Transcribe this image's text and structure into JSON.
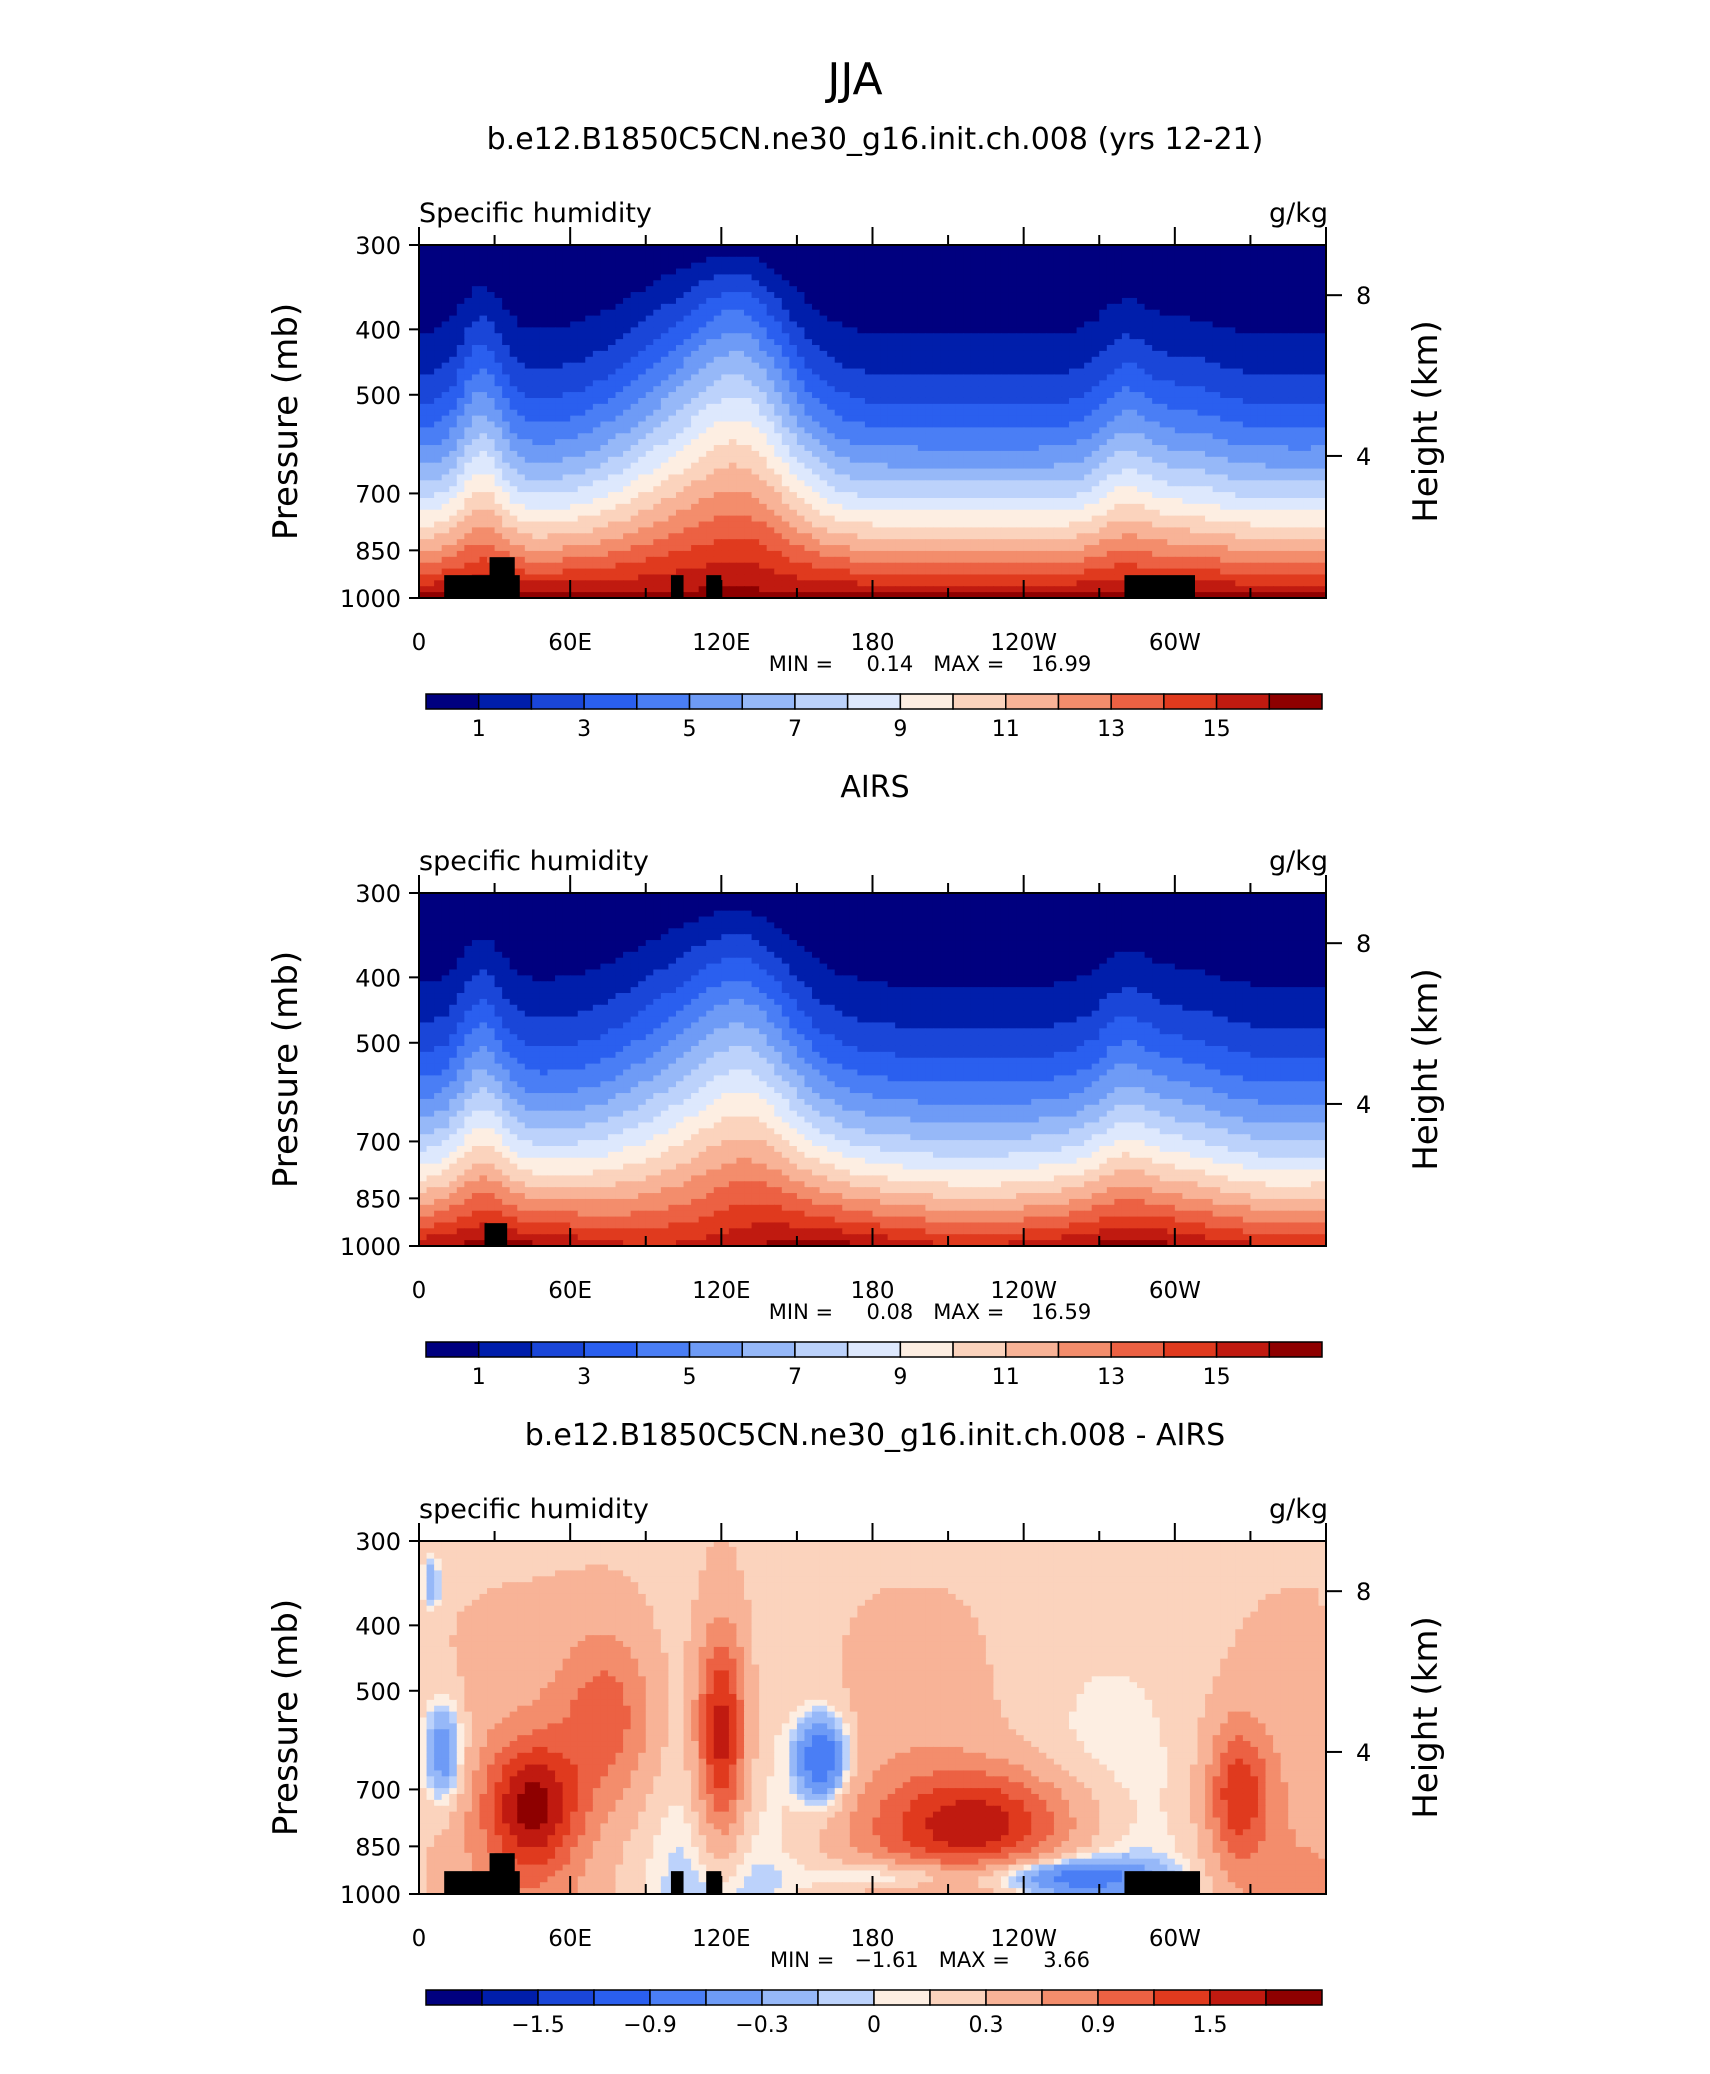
{
  "figure_title": "JJA",
  "chart_data": [
    {
      "type": "heatmap",
      "title": "b.e12.B1850C5CN.ne30_g16.init.ch.008 (yrs 12-21)",
      "left_label": "Specific humidity",
      "right_label": "g/kg",
      "ylabel": "Pressure (mb)",
      "y2label": "Height (km)",
      "x_ticks": [
        "0",
        "60E",
        "120E",
        "180",
        "120W",
        "60W"
      ],
      "y_ticks": [
        "300",
        "400",
        "500",
        "700",
        "850",
        "1000"
      ],
      "y2_ticks": [
        "8",
        "4"
      ],
      "ylim": [
        1000,
        300
      ],
      "y_scale": "log-pressure",
      "stats": "MIN =     0.14   MAX =    16.99",
      "min": 0.14,
      "max": 16.99,
      "colorbar": {
        "labels": [
          "1",
          "3",
          "5",
          "7",
          "9",
          "11",
          "13",
          "15"
        ],
        "levels": [
          1,
          2,
          3,
          4,
          5,
          6,
          7,
          8,
          9,
          10,
          11,
          12,
          13,
          14,
          15,
          16
        ]
      },
      "land_blocks": [
        {
          "lon": [
            10,
            40
          ],
          "p_top": 925
        },
        {
          "lon": [
            28,
            38
          ],
          "p_top": 870
        },
        {
          "lon": [
            100,
            105
          ],
          "p_top": 925
        },
        {
          "lon": [
            114,
            120
          ],
          "p_top": 925
        },
        {
          "lon": [
            280,
            308
          ],
          "p_top": 925
        }
      ]
    },
    {
      "type": "heatmap",
      "title": "AIRS",
      "left_label": "specific humidity",
      "right_label": "g/kg",
      "ylabel": "Pressure (mb)",
      "y2label": "Height (km)",
      "x_ticks": [
        "0",
        "60E",
        "120E",
        "180",
        "120W",
        "60W"
      ],
      "y_ticks": [
        "300",
        "400",
        "500",
        "700",
        "850",
        "1000"
      ],
      "y2_ticks": [
        "8",
        "4"
      ],
      "ylim": [
        1000,
        300
      ],
      "y_scale": "log-pressure",
      "stats": "MIN =     0.08   MAX =    16.59",
      "min": 0.08,
      "max": 16.59,
      "colorbar": {
        "labels": [
          "1",
          "3",
          "5",
          "7",
          "9",
          "11",
          "13",
          "15"
        ],
        "levels": [
          1,
          2,
          3,
          4,
          5,
          6,
          7,
          8,
          9,
          10,
          11,
          12,
          13,
          14,
          15,
          16
        ]
      },
      "land_blocks": [
        {
          "lon": [
            26,
            35
          ],
          "p_top": 925
        }
      ]
    },
    {
      "type": "heatmap",
      "title": "b.e12.B1850C5CN.ne30_g16.init.ch.008 - AIRS",
      "left_label": "specific humidity",
      "right_label": "g/kg",
      "ylabel": "Pressure (mb)",
      "y2label": "Height (km)",
      "x_ticks": [
        "0",
        "60E",
        "120E",
        "180",
        "120W",
        "60W"
      ],
      "y_ticks": [
        "300",
        "400",
        "500",
        "700",
        "850",
        "1000"
      ],
      "y2_ticks": [
        "8",
        "4"
      ],
      "ylim": [
        1000,
        300
      ],
      "y_scale": "log-pressure",
      "stats": "MIN =   −1.61   MAX =     3.66",
      "min": -1.61,
      "max": 3.66,
      "colorbar": {
        "labels": [
          "−1.5",
          "−0.9",
          "−0.3",
          "0",
          "0.3",
          "0.9",
          "1.5"
        ],
        "levels": [
          -1.8,
          -1.5,
          -1.2,
          -0.9,
          -0.6,
          -0.3,
          -0.1,
          0,
          0.1,
          0.3,
          0.6,
          0.9,
          1.2,
          1.5,
          1.8
        ]
      },
      "land_blocks": [
        {
          "lon": [
            10,
            40
          ],
          "p_top": 925
        },
        {
          "lon": [
            28,
            38
          ],
          "p_top": 870
        },
        {
          "lon": [
            100,
            105
          ],
          "p_top": 925
        },
        {
          "lon": [
            114,
            120
          ],
          "p_top": 925
        },
        {
          "lon": [
            280,
            310
          ],
          "p_top": 925
        }
      ]
    }
  ],
  "colors": {
    "diverging_palette": [
      "#00007f",
      "#001eab",
      "#1a46d8",
      "#2a5fef",
      "#4a7ef5",
      "#6e9bf6",
      "#96b8f8",
      "#bcd2fb",
      "#dde8fd",
      "#fdeee2",
      "#fbd3bd",
      "#f8b397",
      "#f38d6c",
      "#ec6143",
      "#e03a1e",
      "#c01a10",
      "#8e0000"
    ],
    "land": "#000000"
  }
}
